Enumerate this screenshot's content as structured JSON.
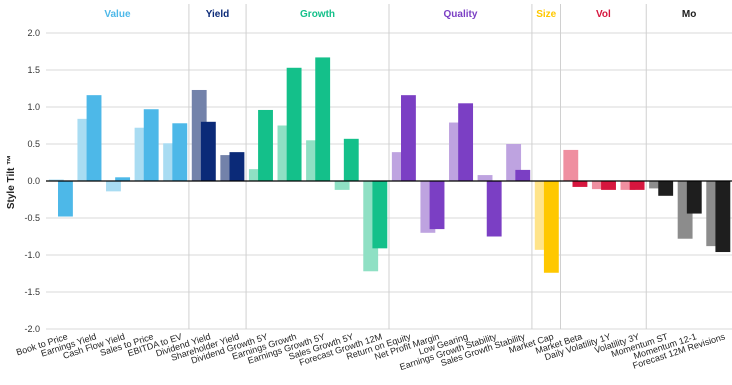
{
  "chart_data": {
    "type": "bar",
    "ylabel": "Style Tilt ™",
    "ylim": [
      -2.0,
      2.0
    ],
    "yticks": [
      "2.0",
      "1.5",
      "1.0",
      "0.5",
      "0.0",
      "-0.5",
      "-1.0",
      "-1.5",
      "-2.0"
    ],
    "grid": true,
    "groups": [
      {
        "name": "Value",
        "color": "#4db8e8",
        "light": "#a9dcf2",
        "categories": [
          {
            "label": "Book to Price",
            "light": 0.02,
            "dark": -0.48
          },
          {
            "label": "Earnings Yield",
            "light": 0.84,
            "dark": 1.16
          },
          {
            "label": "Cash Flow Yield",
            "light": -0.14,
            "dark": 0.05
          },
          {
            "label": "Sales to Price",
            "light": 0.72,
            "dark": 0.97
          },
          {
            "label": "EBITDA to EV",
            "light": 0.51,
            "dark": 0.78
          }
        ]
      },
      {
        "name": "Yield",
        "color": "#0b2a78",
        "light": "#7382aa",
        "categories": [
          {
            "label": "Dividend Yield",
            "light": 1.23,
            "dark": 0.8
          },
          {
            "label": "Shareholder Yield",
            "light": 0.35,
            "dark": 0.39
          }
        ]
      },
      {
        "name": "Growth",
        "color": "#14c08a",
        "light": "#8fe0c4",
        "categories": [
          {
            "label": "Dividend Growth 5Y",
            "light": 0.16,
            "dark": 0.96
          },
          {
            "label": "Earnings Growth",
            "light": 0.75,
            "dark": 1.53
          },
          {
            "label": "Earnings Growth 5Y",
            "light": 0.55,
            "dark": 1.67
          },
          {
            "label": "Sales Growth 5Y",
            "light": -0.12,
            "dark": 0.57
          },
          {
            "label": "Forecast Growth 12M",
            "light": -1.22,
            "dark": -0.91
          }
        ]
      },
      {
        "name": "Quality",
        "color": "#7b3fc4",
        "light": "#bea3e0",
        "categories": [
          {
            "label": "Return on Equity",
            "light": 0.39,
            "dark": 1.16
          },
          {
            "label": "Net Profit Margin",
            "light": -0.7,
            "dark": -0.65
          },
          {
            "label": "Low Gearing",
            "light": 0.79,
            "dark": 1.05
          },
          {
            "label": "Earnings Growth Stability",
            "light": 0.08,
            "dark": -0.75
          },
          {
            "label": "Sales Growth Stability",
            "light": 0.5,
            "dark": 0.15
          }
        ]
      },
      {
        "name": "Size",
        "color": "#ffc800",
        "light": "#ffe48a",
        "categories": [
          {
            "label": "Market Cap",
            "light": -0.93,
            "dark": -1.24
          }
        ]
      },
      {
        "name": "Vol",
        "color": "#d6163e",
        "light": "#ef8fa0",
        "categories": [
          {
            "label": "Market Beta",
            "light": 0.42,
            "dark": -0.08
          },
          {
            "label": "Daily Volatility 1Y",
            "light": -0.11,
            "dark": -0.12
          },
          {
            "label": "Volatility 3Y",
            "light": -0.12,
            "dark": -0.12
          }
        ]
      },
      {
        "name": "Mo",
        "color": "#1e1e1e",
        "light": "#8c8c8c",
        "categories": [
          {
            "label": "Momentum ST",
            "light": -0.1,
            "dark": -0.2
          },
          {
            "label": "Momentum 12-1",
            "light": -0.78,
            "dark": -0.44
          },
          {
            "label": "Forecast 12M Revisions",
            "light": -0.88,
            "dark": -0.96
          }
        ]
      }
    ]
  }
}
